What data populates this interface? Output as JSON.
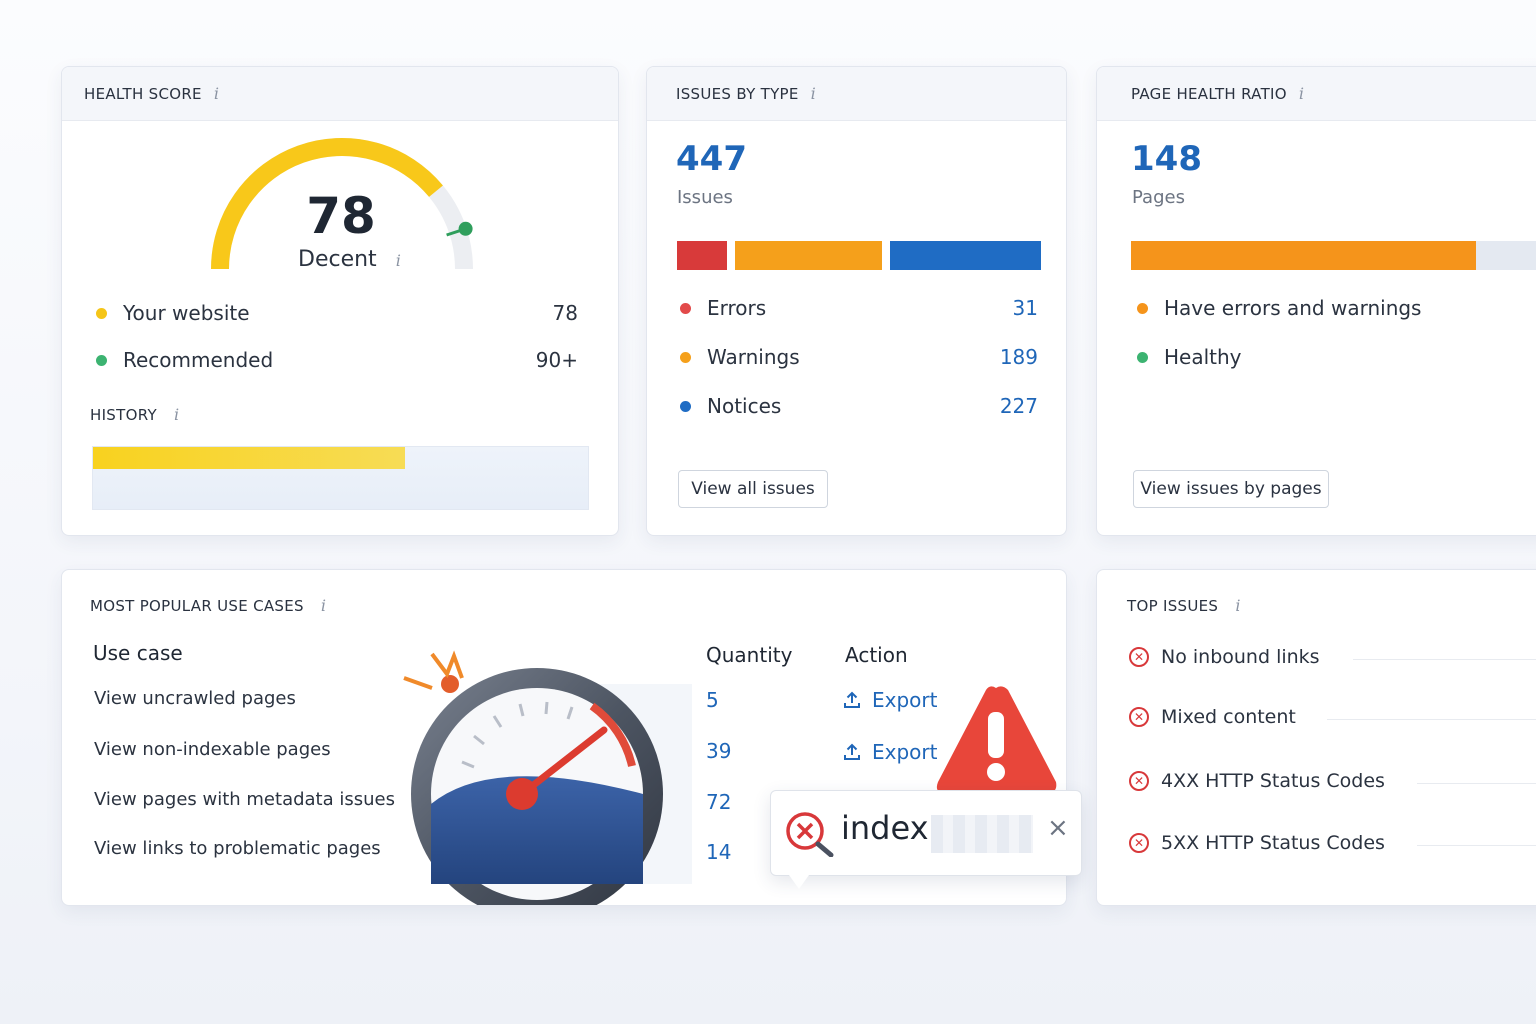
{
  "health_score": {
    "title": "HEALTH SCORE",
    "info": "i",
    "score": "78",
    "score_value": 78,
    "status": "Decent",
    "legend": [
      {
        "label": "Your website",
        "value": "78",
        "color": "#f5c518"
      },
      {
        "label": "Recommended",
        "value": "90+",
        "color": "#3cb371"
      }
    ],
    "history_title": "HISTORY",
    "history_fill": 0.63,
    "gauge_color": "#f8c81a",
    "recommended_marker_color": "#2f9e5c"
  },
  "issues_by_type": {
    "title": "ISSUES BY TYPE",
    "info": "i",
    "total": "447",
    "total_label": "Issues",
    "items": [
      {
        "label": "Errors",
        "value": "31",
        "color": "#d83a3a"
      },
      {
        "label": "Warnings",
        "value": "189",
        "color": "#f5a01b"
      },
      {
        "label": "Notices",
        "value": "227",
        "color": "#1f6cc4"
      }
    ],
    "button": "View all issues"
  },
  "page_health_ratio": {
    "title": "PAGE HEALTH RATIO",
    "info": "i",
    "total": "148",
    "total_label": "Pages",
    "bar_fill": 0.81,
    "items": [
      {
        "label": "Have errors and warnings",
        "color": "#f5941b"
      },
      {
        "label": "Healthy",
        "color": "#3cb371"
      }
    ],
    "button": "View issues by pages"
  },
  "use_cases": {
    "title": "MOST POPULAR USE CASES",
    "info": "i",
    "col_use_case": "Use case",
    "col_quantity": "Quantity",
    "col_action": "Action",
    "rows": [
      {
        "label": "View uncrawled pages",
        "qty": "5",
        "action": "Export"
      },
      {
        "label": "View non-indexable pages",
        "qty": "39",
        "action": "Export"
      },
      {
        "label": "View pages with metadata issues",
        "qty": "72",
        "action": ""
      },
      {
        "label": "View links to problematic pages",
        "qty": "14",
        "action": ""
      }
    ],
    "search_popup": {
      "text": "index"
    }
  },
  "top_issues": {
    "title": "TOP ISSUES",
    "info": "i",
    "items": [
      "No inbound links",
      "Mixed content",
      "4XX HTTP Status Codes",
      "5XX HTTP Status Codes"
    ]
  }
}
